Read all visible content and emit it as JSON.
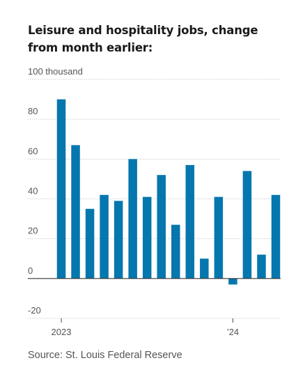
{
  "title": "Leisure and hospitality jobs, change from month earlier:",
  "source": "Source: St. Louis Federal Reserve",
  "colors": {
    "bar": "#0577ae",
    "grid": "#cfcfcf",
    "zero": "#333333",
    "text": "#555555"
  },
  "chart_data": {
    "type": "bar",
    "title": "Leisure and hospitality jobs, change from month earlier:",
    "unit_label": "100 thousand",
    "ylim": [
      -20,
      100
    ],
    "yticks": [
      -20,
      0,
      20,
      40,
      60,
      80,
      100
    ],
    "ytick_labels": [
      "-20",
      "0",
      "20",
      "40",
      "60",
      "80",
      "100 thousand"
    ],
    "x_tick_labels": [
      {
        "label": "2023",
        "index": 0
      },
      {
        "label": "’24",
        "index": 12
      }
    ],
    "categories": [
      "Jan 2023",
      "Feb 2023",
      "Mar 2023",
      "Apr 2023",
      "May 2023",
      "Jun 2023",
      "Jul 2023",
      "Aug 2023",
      "Sep 2023",
      "Oct 2023",
      "Nov 2023",
      "Dec 2023",
      "Jan 2024",
      "Feb 2024",
      "Mar 2024",
      "Apr 2024"
    ],
    "values": [
      90,
      67,
      35,
      42,
      39,
      60,
      41,
      52,
      27,
      57,
      10,
      41,
      -3,
      54,
      12,
      42
    ],
    "grid": true
  }
}
